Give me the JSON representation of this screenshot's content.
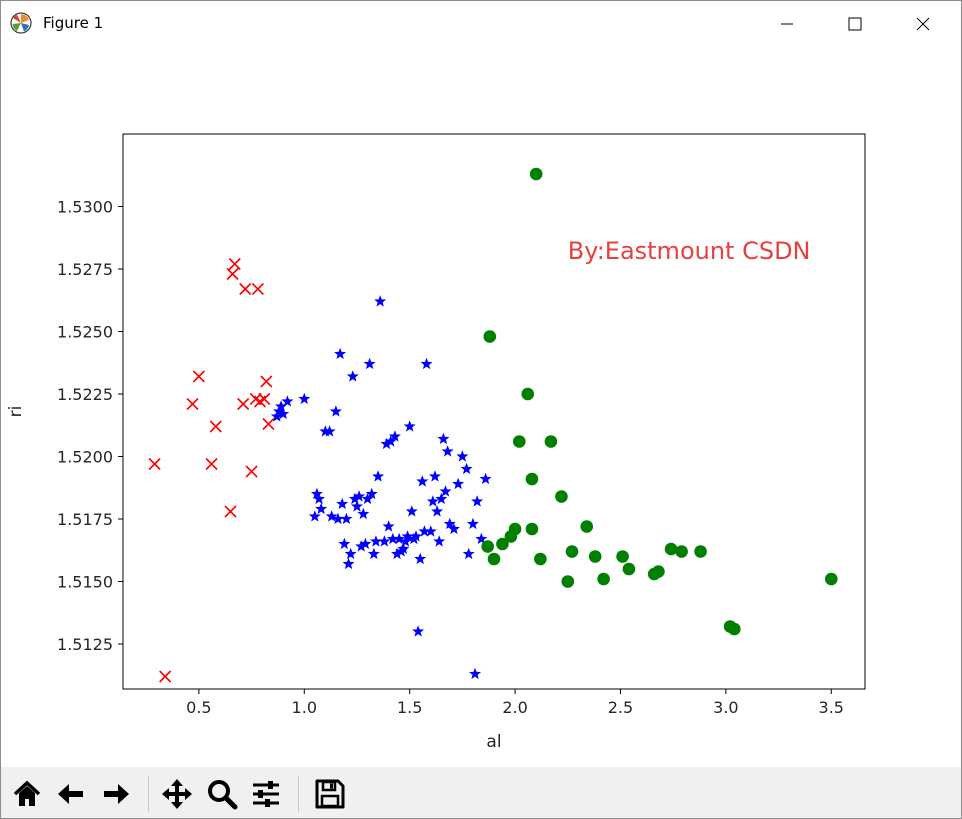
{
  "window": {
    "title": "Figure 1",
    "icons": {
      "app": "matplotlib-icon",
      "minimize": "minimize-icon",
      "maximize": "maximize-icon",
      "close": "close-icon"
    }
  },
  "toolbar": {
    "buttons": [
      {
        "name": "home-button",
        "icon": "home-icon"
      },
      {
        "name": "back-button",
        "icon": "arrow-left-icon"
      },
      {
        "name": "forward-button",
        "icon": "arrow-right-icon"
      },
      {
        "name": "pan-button",
        "icon": "move-icon"
      },
      {
        "name": "zoom-button",
        "icon": "magnifier-icon"
      },
      {
        "name": "configure-subplots-button",
        "icon": "sliders-icon"
      },
      {
        "name": "save-button",
        "icon": "floppy-disk-icon"
      }
    ]
  },
  "chart_data": {
    "type": "scatter",
    "title": "",
    "xlabel": "al",
    "ylabel": "ri",
    "xlim": [
      0.14,
      3.66
    ],
    "ylim": [
      1.5107,
      1.5329
    ],
    "xticks": [
      {
        "value": 0.5,
        "label": "0.5"
      },
      {
        "value": 1.0,
        "label": "1.0"
      },
      {
        "value": 1.5,
        "label": "1.5"
      },
      {
        "value": 2.0,
        "label": "2.0"
      },
      {
        "value": 2.5,
        "label": "2.5"
      },
      {
        "value": 3.0,
        "label": "3.0"
      },
      {
        "value": 3.5,
        "label": "3.5"
      }
    ],
    "yticks": [
      {
        "value": 1.5125,
        "label": "1.5125"
      },
      {
        "value": 1.515,
        "label": "1.5150"
      },
      {
        "value": 1.5175,
        "label": "1.5175"
      },
      {
        "value": 1.52,
        "label": "1.5200"
      },
      {
        "value": 1.5225,
        "label": "1.5225"
      },
      {
        "value": 1.525,
        "label": "1.5250"
      },
      {
        "value": 1.5275,
        "label": "1.5275"
      },
      {
        "value": 1.53,
        "label": "1.5300"
      }
    ],
    "grid": false,
    "annotation": {
      "text": "By:Eastmount CSDN",
      "x": 2.25,
      "y": 1.5279,
      "color": "#e8403f"
    },
    "series": [
      {
        "marker": "x",
        "color": "#ff0000",
        "points": [
          [
            0.29,
            1.5197
          ],
          [
            0.34,
            1.5112
          ],
          [
            0.47,
            1.5221
          ],
          [
            0.5,
            1.5232
          ],
          [
            0.56,
            1.5197
          ],
          [
            0.58,
            1.5212
          ],
          [
            0.65,
            1.5178
          ],
          [
            0.66,
            1.5273
          ],
          [
            0.67,
            1.5277
          ],
          [
            0.71,
            1.5221
          ],
          [
            0.72,
            1.5267
          ],
          [
            0.75,
            1.5194
          ],
          [
            0.77,
            1.5223
          ],
          [
            0.78,
            1.5267
          ],
          [
            0.79,
            1.5222
          ],
          [
            0.81,
            1.5223
          ],
          [
            0.82,
            1.523
          ],
          [
            0.83,
            1.5213
          ]
        ]
      },
      {
        "marker": "*",
        "color": "#0000ff",
        "points": [
          [
            0.87,
            1.5216
          ],
          [
            0.88,
            1.5218
          ],
          [
            0.89,
            1.522
          ],
          [
            0.9,
            1.5217
          ],
          [
            0.92,
            1.5222
          ],
          [
            1.0,
            1.5223
          ],
          [
            1.05,
            1.5176
          ],
          [
            1.06,
            1.5185
          ],
          [
            1.07,
            1.5183
          ],
          [
            1.08,
            1.5179
          ],
          [
            1.1,
            1.521
          ],
          [
            1.12,
            1.521
          ],
          [
            1.13,
            1.5176
          ],
          [
            1.15,
            1.5218
          ],
          [
            1.16,
            1.5175
          ],
          [
            1.17,
            1.5241
          ],
          [
            1.18,
            1.5181
          ],
          [
            1.19,
            1.5165
          ],
          [
            1.2,
            1.5175
          ],
          [
            1.21,
            1.5157
          ],
          [
            1.22,
            1.5161
          ],
          [
            1.23,
            1.5232
          ],
          [
            1.24,
            1.5183
          ],
          [
            1.25,
            1.518
          ],
          [
            1.26,
            1.5184
          ],
          [
            1.27,
            1.5164
          ],
          [
            1.28,
            1.5177
          ],
          [
            1.29,
            1.5165
          ],
          [
            1.3,
            1.5183
          ],
          [
            1.31,
            1.5237
          ],
          [
            1.32,
            1.5185
          ],
          [
            1.33,
            1.5161
          ],
          [
            1.34,
            1.5166
          ],
          [
            1.35,
            1.5192
          ],
          [
            1.36,
            1.5262
          ],
          [
            1.38,
            1.5166
          ],
          [
            1.39,
            1.5205
          ],
          [
            1.4,
            1.5172
          ],
          [
            1.41,
            1.5206
          ],
          [
            1.42,
            1.5167
          ],
          [
            1.43,
            1.5208
          ],
          [
            1.44,
            1.5161
          ],
          [
            1.45,
            1.5167
          ],
          [
            1.46,
            1.5162
          ],
          [
            1.47,
            1.5163
          ],
          [
            1.48,
            1.5166
          ],
          [
            1.49,
            1.5168
          ],
          [
            1.5,
            1.5212
          ],
          [
            1.51,
            1.5178
          ],
          [
            1.52,
            1.5167
          ],
          [
            1.53,
            1.5168
          ],
          [
            1.54,
            1.513
          ],
          [
            1.55,
            1.5159
          ],
          [
            1.56,
            1.519
          ],
          [
            1.57,
            1.517
          ],
          [
            1.58,
            1.5237
          ],
          [
            1.6,
            1.517
          ],
          [
            1.61,
            1.5182
          ],
          [
            1.62,
            1.5192
          ],
          [
            1.63,
            1.5178
          ],
          [
            1.64,
            1.5166
          ],
          [
            1.65,
            1.5183
          ],
          [
            1.66,
            1.5207
          ],
          [
            1.67,
            1.5186
          ],
          [
            1.68,
            1.5202
          ],
          [
            1.69,
            1.5173
          ],
          [
            1.71,
            1.5171
          ],
          [
            1.73,
            1.5189
          ],
          [
            1.75,
            1.52
          ],
          [
            1.77,
            1.5195
          ],
          [
            1.78,
            1.5161
          ],
          [
            1.8,
            1.5173
          ],
          [
            1.81,
            1.5113
          ],
          [
            1.82,
            1.5182
          ],
          [
            1.84,
            1.5167
          ],
          [
            1.86,
            1.5191
          ]
        ]
      },
      {
        "marker": "o",
        "color": "#008000",
        "points": [
          [
            1.87,
            1.5164
          ],
          [
            1.88,
            1.5248
          ],
          [
            1.9,
            1.5159
          ],
          [
            1.94,
            1.5165
          ],
          [
            1.98,
            1.5168
          ],
          [
            2.0,
            1.5171
          ],
          [
            2.02,
            1.5206
          ],
          [
            2.06,
            1.5225
          ],
          [
            2.08,
            1.5191
          ],
          [
            2.08,
            1.5171
          ],
          [
            2.1,
            1.5313
          ],
          [
            2.12,
            1.5159
          ],
          [
            2.17,
            1.5206
          ],
          [
            2.22,
            1.5184
          ],
          [
            2.25,
            1.515
          ],
          [
            2.27,
            1.5162
          ],
          [
            2.34,
            1.5172
          ],
          [
            2.38,
            1.516
          ],
          [
            2.42,
            1.5151
          ],
          [
            2.51,
            1.516
          ],
          [
            2.54,
            1.5155
          ],
          [
            2.66,
            1.5153
          ],
          [
            2.68,
            1.5154
          ],
          [
            2.74,
            1.5163
          ],
          [
            2.79,
            1.5162
          ],
          [
            2.88,
            1.5162
          ],
          [
            3.02,
            1.5132
          ],
          [
            3.04,
            1.5131
          ],
          [
            3.5,
            1.5151
          ]
        ]
      }
    ]
  }
}
